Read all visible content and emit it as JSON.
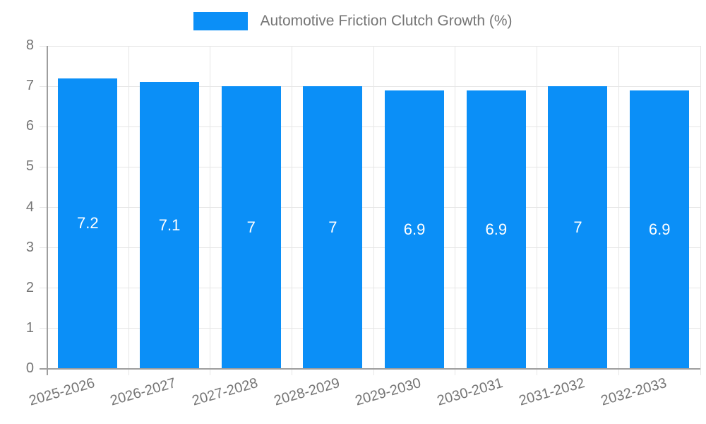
{
  "legend": {
    "label": "Automotive Friction Clutch Growth (%)"
  },
  "chart_data": {
    "type": "bar",
    "title": "Automotive Friction Clutch Growth (%)",
    "categories": [
      "2025-2026",
      "2026-2027",
      "2027-2028",
      "2028-2029",
      "2029-2030",
      "2030-2031",
      "2031-2032",
      "2032-2033"
    ],
    "values": [
      7.2,
      7.1,
      7,
      7,
      6.9,
      6.9,
      7,
      6.9
    ],
    "bar_labels": [
      "7.2",
      "7.1",
      "7",
      "7",
      "6.9",
      "6.9",
      "7",
      "6.9"
    ],
    "xlabel": "",
    "ylabel": "",
    "ylim": [
      0,
      8
    ],
    "yticks": [
      0,
      1,
      2,
      3,
      4,
      5,
      6,
      7,
      8
    ],
    "grid": true,
    "legend_position": "top-center",
    "colors": {
      "bar": "#0b8ff7",
      "bar_label": "#ffffff",
      "grid": "#e6e6e6",
      "axis": "#9e9e9e",
      "tick_label": "#757575",
      "title": "#757575",
      "background": "#ffffff"
    }
  }
}
